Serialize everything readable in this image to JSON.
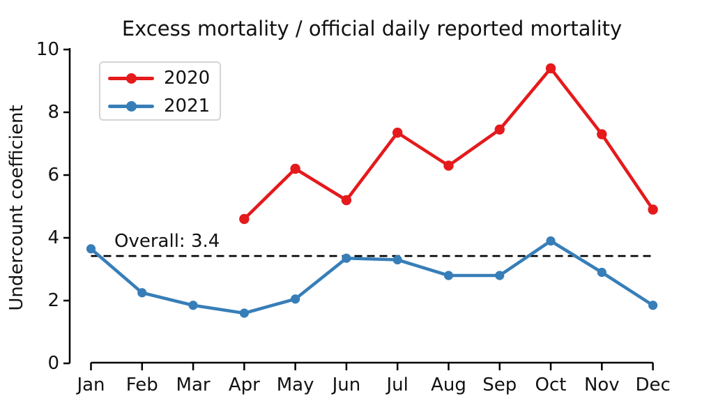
{
  "chart_data": {
    "type": "line",
    "title": "Excess mortality / official daily reported mortality",
    "ylabel": "Undercount coefficient",
    "xlabel": "",
    "categories": [
      "Jan",
      "Feb",
      "Mar",
      "Apr",
      "May",
      "Jun",
      "Jul",
      "Aug",
      "Sep",
      "Oct",
      "Nov",
      "Dec"
    ],
    "ylim": [
      0,
      10
    ],
    "yticks": [
      0,
      2,
      4,
      6,
      8,
      10
    ],
    "grid": false,
    "legend_position": "upper-left",
    "series": [
      {
        "name": "2020",
        "color": "#e41a1c",
        "start_index": 3,
        "values": [
          4.6,
          6.2,
          5.2,
          7.35,
          6.3,
          7.45,
          9.4,
          7.3,
          4.9
        ]
      },
      {
        "name": "2021",
        "color": "#377eb8",
        "start_index": 0,
        "values": [
          3.65,
          2.25,
          1.85,
          1.6,
          2.05,
          3.35,
          3.3,
          2.8,
          2.8,
          3.9,
          2.9,
          1.85
        ]
      }
    ],
    "reference_line": {
      "label": "Overall: 3.4",
      "value": 3.42,
      "style": "dashed",
      "color": "#000000"
    }
  }
}
